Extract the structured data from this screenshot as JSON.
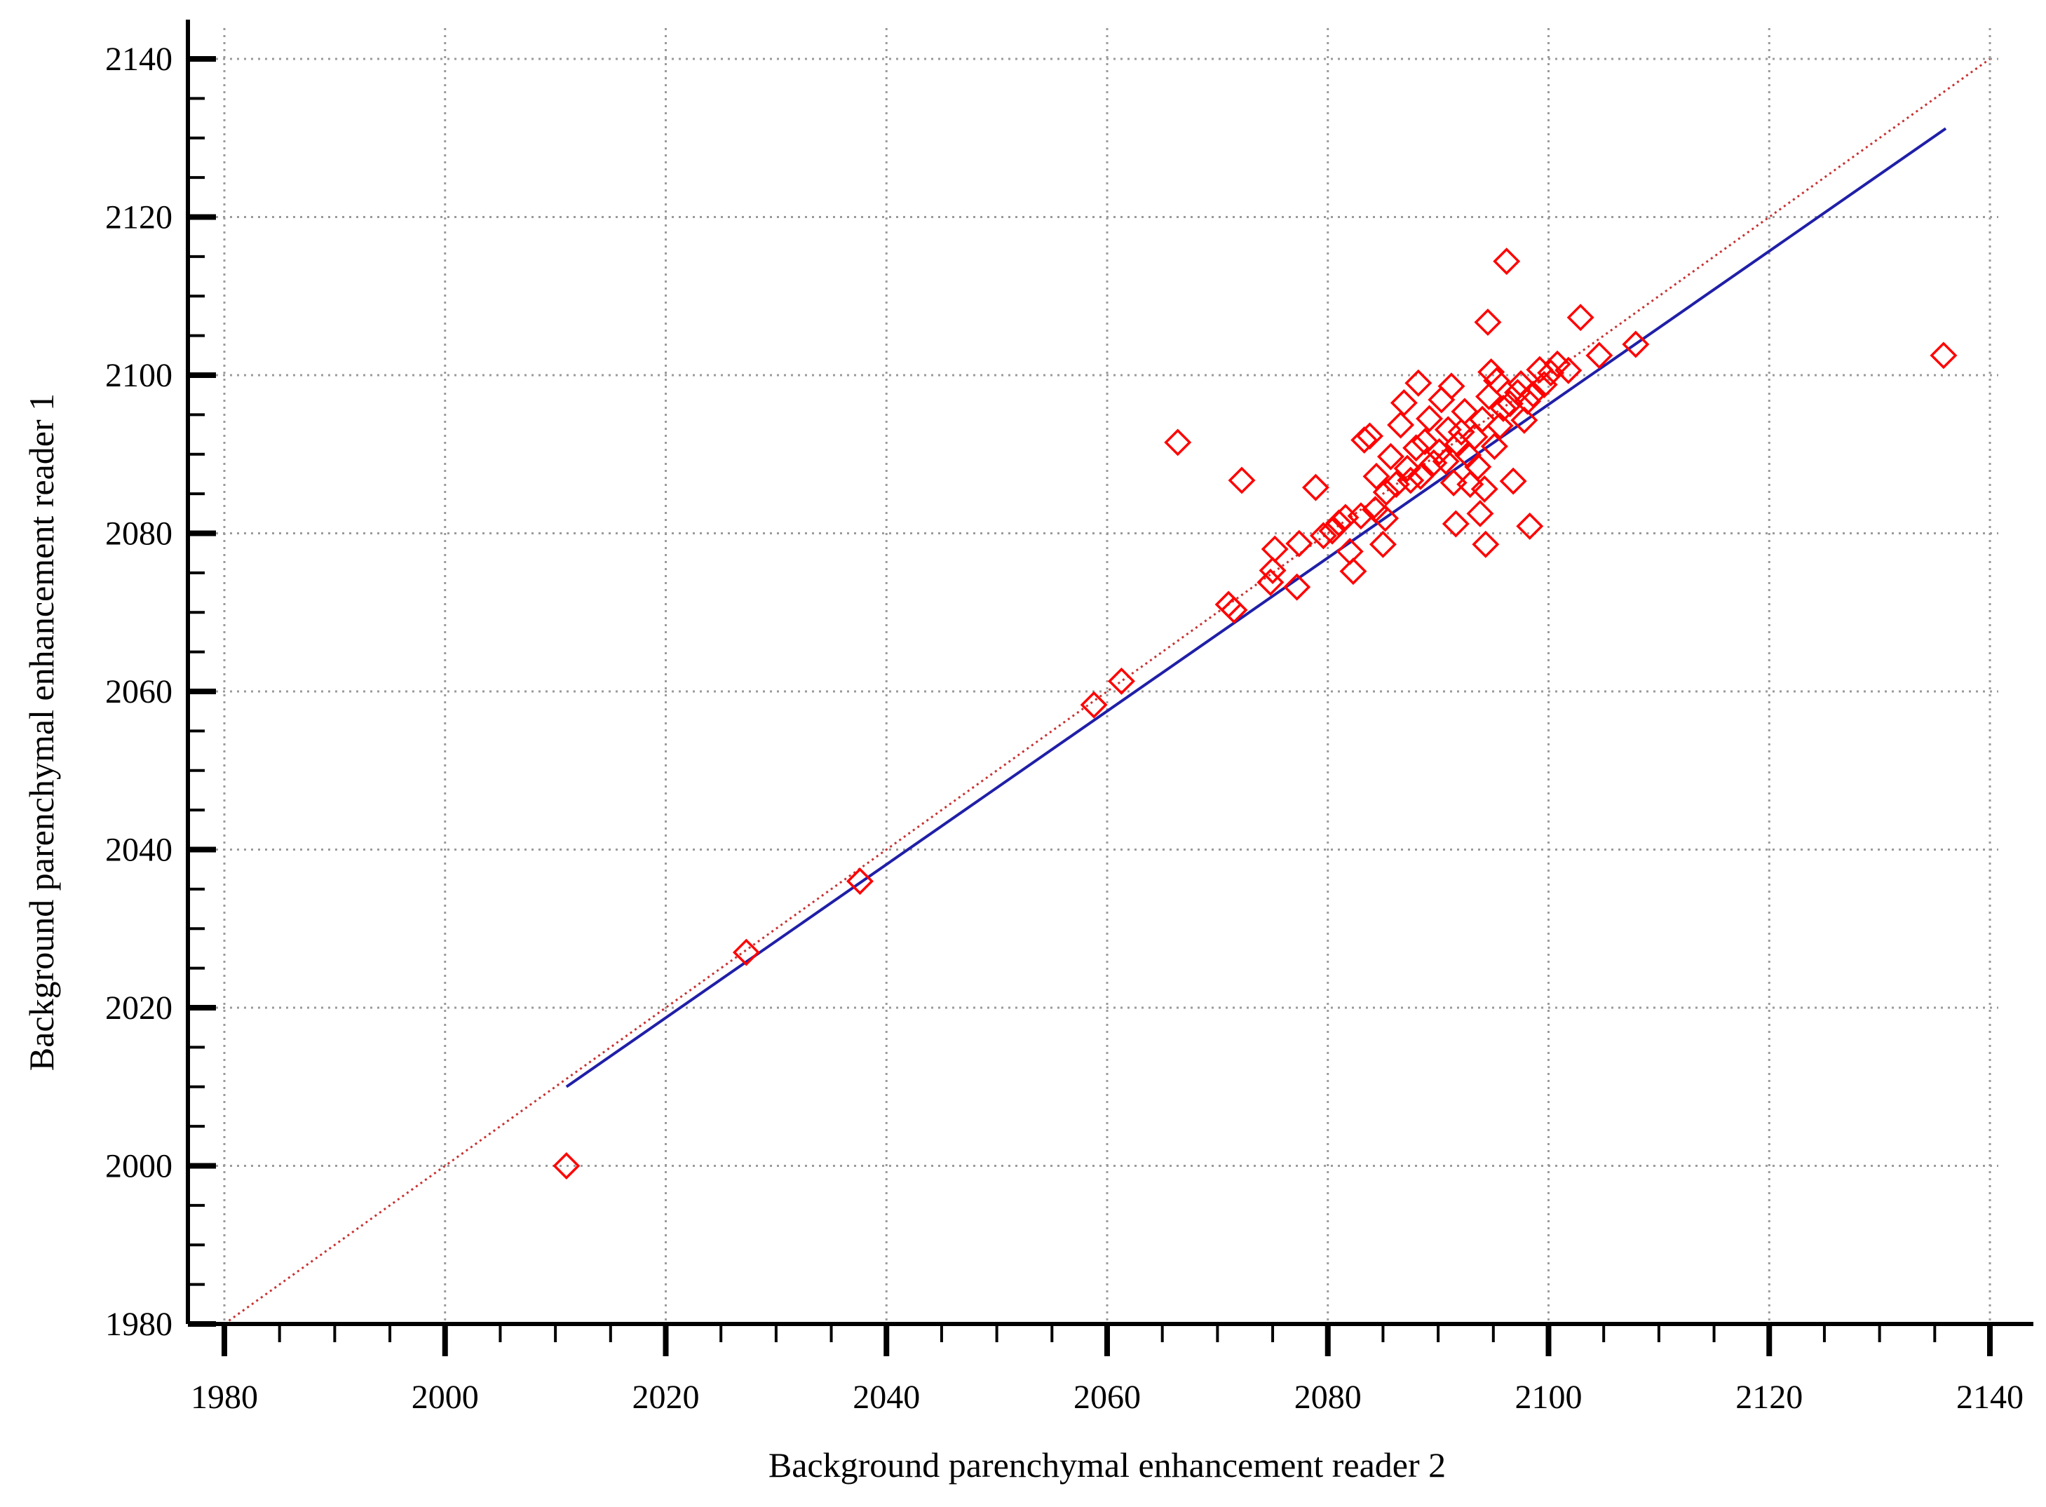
{
  "chart_data": {
    "type": "scatter",
    "title": "",
    "xlabel": "Background parenchymal enhancement reader 2",
    "ylabel": "Background parenchymal enhancement reader 1",
    "xlim": [
      1978,
      2142
    ],
    "ylim": [
      1976,
      2144
    ],
    "x_ticks": [
      1980,
      2000,
      2020,
      2040,
      2060,
      2080,
      2100,
      2120,
      2140
    ],
    "y_ticks": [
      1980,
      2000,
      2020,
      2040,
      2060,
      2080,
      2100,
      2120,
      2140
    ],
    "x_tick_labels": [
      "1980",
      "2000",
      "2020",
      "2040",
      "2060",
      "2080",
      "2100",
      "2120",
      "2140"
    ],
    "y_tick_labels": [
      "1980",
      "2000",
      "2020",
      "2040",
      "2060",
      "2080",
      "2100",
      "2120",
      "2140"
    ],
    "grid": true,
    "legend": "none",
    "colors": {
      "points": "#ff0000",
      "fit_line": "#1f1fa8",
      "identity_line": "#c83232"
    },
    "series": [
      {
        "kind": "points",
        "marker": "diamond-open",
        "points": [
          [
            2011,
            2000
          ],
          [
            2027.3,
            2027
          ],
          [
            2037.6,
            2036
          ],
          [
            2058.8,
            2058.3
          ],
          [
            2061.3,
            2061.3
          ],
          [
            2066.4,
            2091.5
          ],
          [
            2071,
            2071
          ],
          [
            2071.5,
            2070.3
          ],
          [
            2072.2,
            2086.7
          ],
          [
            2074.8,
            2073.8
          ],
          [
            2075,
            2075.3
          ],
          [
            2075.2,
            2078
          ],
          [
            2077.2,
            2073.2
          ],
          [
            2077.4,
            2078.7
          ],
          [
            2078.9,
            2085.8
          ],
          [
            2079.6,
            2079.7
          ],
          [
            2080.4,
            2080.3
          ],
          [
            2081,
            2081.3
          ],
          [
            2081.6,
            2082
          ],
          [
            2082,
            2077.7
          ],
          [
            2082.3,
            2075.2
          ],
          [
            2083,
            2082.2
          ],
          [
            2083.3,
            2091.8
          ],
          [
            2083.8,
            2092.3
          ],
          [
            2084.3,
            2083
          ],
          [
            2084.4,
            2087.2
          ],
          [
            2085,
            2078.6
          ],
          [
            2085.2,
            2081.9
          ],
          [
            2085.3,
            2085.2
          ],
          [
            2085.7,
            2089.7
          ],
          [
            2086.2,
            2086.2
          ],
          [
            2086.6,
            2093.7
          ],
          [
            2086.9,
            2096.5
          ],
          [
            2087.2,
            2088.2
          ],
          [
            2087.5,
            2086.7
          ],
          [
            2088,
            2090.8
          ],
          [
            2088.2,
            2099
          ],
          [
            2088.4,
            2087.2
          ],
          [
            2088.8,
            2091.6
          ],
          [
            2089.2,
            2094.5
          ],
          [
            2089.6,
            2088.9
          ],
          [
            2090.1,
            2090.3
          ],
          [
            2090.3,
            2096.9
          ],
          [
            2090.7,
            2089.1
          ],
          [
            2090.9,
            2093.1
          ],
          [
            2091.2,
            2098.6
          ],
          [
            2091.4,
            2086.4
          ],
          [
            2091.6,
            2081.2
          ],
          [
            2091.8,
            2091.3
          ],
          [
            2092.1,
            2092.8
          ],
          [
            2092.4,
            2095.4
          ],
          [
            2092.7,
            2089.9
          ],
          [
            2092.9,
            2086.2
          ],
          [
            2093.3,
            2092.2
          ],
          [
            2093.6,
            2088.4
          ],
          [
            2093.8,
            2082.5
          ],
          [
            2094,
            2094.4
          ],
          [
            2094.2,
            2085.6
          ],
          [
            2094.3,
            2078.6
          ],
          [
            2094.5,
            2106.7
          ],
          [
            2094.6,
            2097.3
          ],
          [
            2094.8,
            2100.4
          ],
          [
            2095.1,
            2091
          ],
          [
            2095.3,
            2099.3
          ],
          [
            2095.6,
            2093.6
          ],
          [
            2095.9,
            2095.8
          ],
          [
            2096.2,
            2114.4
          ],
          [
            2096.5,
            2096.4
          ],
          [
            2096.8,
            2086.6
          ],
          [
            2097.2,
            2097.8
          ],
          [
            2097.5,
            2098.9
          ],
          [
            2097.8,
            2094.3
          ],
          [
            2098.1,
            2096.7
          ],
          [
            2098.3,
            2080.9
          ],
          [
            2098.6,
            2097.6
          ],
          [
            2099.2,
            2100.7
          ],
          [
            2099.6,
            2098.8
          ],
          [
            2100.2,
            2100.3
          ],
          [
            2100.8,
            2101.4
          ],
          [
            2101.8,
            2100.6
          ],
          [
            2102.9,
            2107.3
          ],
          [
            2104.6,
            2102.5
          ],
          [
            2107.9,
            2103.9
          ],
          [
            2135.8,
            2102.5
          ]
        ]
      },
      {
        "kind": "line",
        "style": "solid",
        "points": [
          [
            2011,
            2010
          ],
          [
            2136,
            2131.2
          ]
        ]
      },
      {
        "kind": "line",
        "style": "dotted",
        "points": [
          [
            1980,
            1980
          ],
          [
            2140,
            2140
          ]
        ]
      }
    ]
  }
}
